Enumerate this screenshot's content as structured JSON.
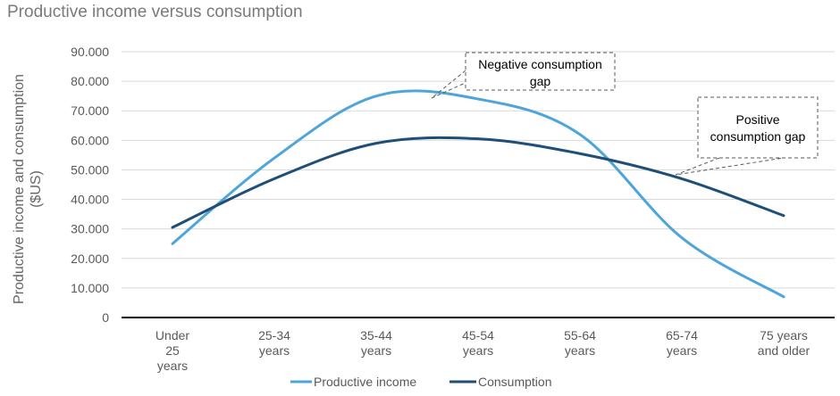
{
  "chart_data": {
    "type": "line",
    "title": "Productive income versus consumption",
    "ylabel": "Productive income and consumption ($US)",
    "xlabel": "",
    "ylim": [
      0,
      90000
    ],
    "y_ticks": [
      "0",
      "10.000",
      "20.000",
      "30.000",
      "40.000",
      "50.000",
      "60.000",
      "70.000",
      "80.000",
      "90.000"
    ],
    "categories": [
      [
        "Under",
        "25",
        "years"
      ],
      [
        "25-34",
        "years"
      ],
      [
        "35-44",
        "years"
      ],
      [
        "45-54",
        "years"
      ],
      [
        "55-64",
        "years"
      ],
      [
        "65-74",
        "years"
      ],
      [
        "75 years",
        "and older"
      ]
    ],
    "series": [
      {
        "name": "Productive income",
        "color": "#4ea5d9",
        "values": [
          25000,
          54000,
          75000,
          74000,
          62000,
          27000,
          7000
        ]
      },
      {
        "name": "Consumption",
        "color": "#1f4e79",
        "values": [
          30500,
          47000,
          59000,
          60500,
          55500,
          47000,
          34500
        ]
      }
    ],
    "annotations": [
      {
        "label": [
          "Negative consumption",
          "gap"
        ]
      },
      {
        "label": [
          "Positive",
          "consumption gap"
        ]
      }
    ],
    "grid": true,
    "legend": "bottom"
  }
}
